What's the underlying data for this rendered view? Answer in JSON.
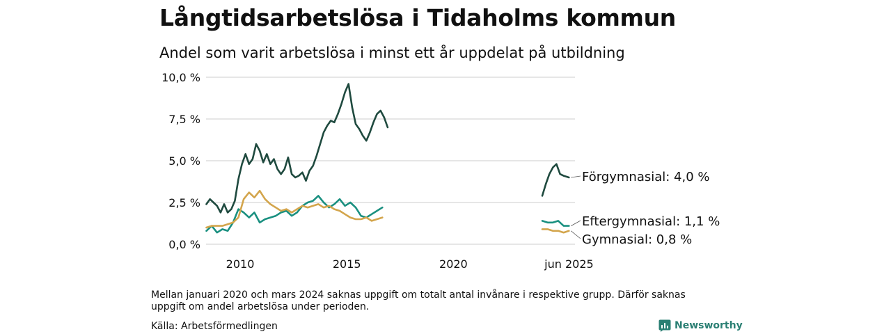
{
  "title": "Långtidsarbetslösa i Tidaholms kommun",
  "subtitle": "Andel som varit arbetslösa i minst ett år uppdelat på utbildning",
  "note": "Mellan januari 2020 och mars 2024 saknas uppgift om totalt antal invånare i respektive grupp. Därför saknas uppgift om andel arbetslösa under perioden.",
  "source": "Källa: Arbetsförmedlingen",
  "logo": {
    "text": "Newsworthy",
    "icon": "newsworthy-logo-icon",
    "color": "#2a7f73"
  },
  "chart_data": {
    "type": "line",
    "x_ticks": [
      "2010",
      "2015",
      "2020",
      "jun 2025"
    ],
    "y_ticks": [
      "0,0 %",
      "2,5 %",
      "5,0 %",
      "7,5 %",
      "10,0 %"
    ],
    "ylim": [
      0,
      10
    ],
    "grid": true,
    "series": [
      {
        "name": "Förgymnasial",
        "end_label": "Förgymnasial: 4,0 %",
        "color": "#1f4a3f",
        "segments": [
          [
            [
              "2008-06",
              2.4
            ],
            [
              "2008-08",
              2.7
            ],
            [
              "2008-10",
              2.5
            ],
            [
              "2008-12",
              2.3
            ],
            [
              "2009-02",
              1.9
            ],
            [
              "2009-04",
              2.4
            ],
            [
              "2009-06",
              1.9
            ],
            [
              "2009-08",
              2.1
            ],
            [
              "2009-10",
              2.6
            ],
            [
              "2009-12",
              3.9
            ],
            [
              "2010-02",
              4.8
            ],
            [
              "2010-04",
              5.4
            ],
            [
              "2010-06",
              4.8
            ],
            [
              "2010-08",
              5.1
            ],
            [
              "2010-10",
              6.0
            ],
            [
              "2010-12",
              5.6
            ],
            [
              "2011-02",
              4.9
            ],
            [
              "2011-04",
              5.4
            ],
            [
              "2011-06",
              4.8
            ],
            [
              "2011-08",
              5.1
            ],
            [
              "2011-10",
              4.5
            ],
            [
              "2011-12",
              4.2
            ],
            [
              "2012-02",
              4.5
            ],
            [
              "2012-04",
              5.2
            ],
            [
              "2012-06",
              4.2
            ],
            [
              "2012-08",
              4.0
            ],
            [
              "2012-10",
              4.1
            ],
            [
              "2012-12",
              4.3
            ],
            [
              "2013-02",
              3.8
            ],
            [
              "2013-04",
              4.4
            ],
            [
              "2013-06",
              4.7
            ],
            [
              "2013-08",
              5.3
            ],
            [
              "2013-10",
              6.0
            ],
            [
              "2013-12",
              6.7
            ],
            [
              "2014-02",
              7.1
            ],
            [
              "2014-04",
              7.4
            ],
            [
              "2014-06",
              7.3
            ],
            [
              "2014-08",
              7.8
            ],
            [
              "2014-10",
              8.4
            ],
            [
              "2014-12",
              9.1
            ],
            [
              "2015-02",
              9.6
            ],
            [
              "2015-04",
              8.2
            ],
            [
              "2015-06",
              7.2
            ],
            [
              "2015-08",
              6.9
            ],
            [
              "2015-10",
              6.5
            ],
            [
              "2015-12",
              6.2
            ],
            [
              "2016-02",
              6.7
            ],
            [
              "2016-04",
              7.3
            ],
            [
              "2016-06",
              7.8
            ],
            [
              "2016-08",
              8.0
            ],
            [
              "2016-10",
              7.6
            ],
            [
              "2016-12",
              7.0
            ]
          ],
          [
            [
              "2024-03",
              2.9
            ],
            [
              "2024-05",
              3.6
            ],
            [
              "2024-07",
              4.2
            ],
            [
              "2024-09",
              4.6
            ],
            [
              "2024-11",
              4.8
            ],
            [
              "2025-01",
              4.2
            ],
            [
              "2025-03",
              4.1
            ],
            [
              "2025-06",
              4.0
            ]
          ]
        ]
      },
      {
        "name": "Eftergymnasial",
        "end_label": "Eftergymnasial: 1,1 %",
        "color": "#1a9080",
        "segments": [
          [
            [
              "2008-06",
              0.8
            ],
            [
              "2008-09",
              1.1
            ],
            [
              "2008-12",
              0.7
            ],
            [
              "2009-03",
              0.9
            ],
            [
              "2009-06",
              0.8
            ],
            [
              "2009-09",
              1.3
            ],
            [
              "2009-12",
              2.1
            ],
            [
              "2010-03",
              1.9
            ],
            [
              "2010-06",
              1.6
            ],
            [
              "2010-09",
              1.9
            ],
            [
              "2010-12",
              1.3
            ],
            [
              "2011-03",
              1.5
            ],
            [
              "2011-06",
              1.6
            ],
            [
              "2011-09",
              1.7
            ],
            [
              "2011-12",
              1.9
            ],
            [
              "2012-03",
              2.0
            ],
            [
              "2012-06",
              1.7
            ],
            [
              "2012-09",
              1.9
            ],
            [
              "2012-12",
              2.3
            ],
            [
              "2013-03",
              2.5
            ],
            [
              "2013-06",
              2.6
            ],
            [
              "2013-09",
              2.9
            ],
            [
              "2013-12",
              2.5
            ],
            [
              "2014-03",
              2.2
            ],
            [
              "2014-06",
              2.4
            ],
            [
              "2014-09",
              2.7
            ],
            [
              "2014-12",
              2.3
            ],
            [
              "2015-03",
              2.5
            ],
            [
              "2015-06",
              2.2
            ],
            [
              "2015-09",
              1.7
            ],
            [
              "2015-12",
              1.6
            ],
            [
              "2016-03",
              1.8
            ],
            [
              "2016-06",
              2.0
            ],
            [
              "2016-09",
              2.2
            ]
          ],
          [
            [
              "2024-03",
              1.4
            ],
            [
              "2024-06",
              1.3
            ],
            [
              "2024-09",
              1.3
            ],
            [
              "2024-12",
              1.4
            ],
            [
              "2025-03",
              1.1
            ],
            [
              "2025-06",
              1.1
            ]
          ]
        ]
      },
      {
        "name": "Gymnasial",
        "end_label": "Gymnasial: 0,8 %",
        "color": "#d3a54c",
        "segments": [
          [
            [
              "2008-06",
              1.0
            ],
            [
              "2008-09",
              1.1
            ],
            [
              "2008-12",
              1.1
            ],
            [
              "2009-03",
              1.1
            ],
            [
              "2009-06",
              1.2
            ],
            [
              "2009-09",
              1.3
            ],
            [
              "2009-12",
              1.6
            ],
            [
              "2010-03",
              2.7
            ],
            [
              "2010-06",
              3.1
            ],
            [
              "2010-09",
              2.8
            ],
            [
              "2010-12",
              3.2
            ],
            [
              "2011-03",
              2.7
            ],
            [
              "2011-06",
              2.4
            ],
            [
              "2011-09",
              2.2
            ],
            [
              "2011-12",
              2.0
            ],
            [
              "2012-03",
              2.1
            ],
            [
              "2012-06",
              1.9
            ],
            [
              "2012-09",
              2.1
            ],
            [
              "2012-12",
              2.3
            ],
            [
              "2013-03",
              2.2
            ],
            [
              "2013-06",
              2.3
            ],
            [
              "2013-09",
              2.4
            ],
            [
              "2013-12",
              2.2
            ],
            [
              "2014-03",
              2.3
            ],
            [
              "2014-06",
              2.1
            ],
            [
              "2014-09",
              2.0
            ],
            [
              "2014-12",
              1.8
            ],
            [
              "2015-03",
              1.6
            ],
            [
              "2015-06",
              1.5
            ],
            [
              "2015-09",
              1.5
            ],
            [
              "2015-12",
              1.6
            ],
            [
              "2016-03",
              1.4
            ],
            [
              "2016-06",
              1.5
            ],
            [
              "2016-09",
              1.6
            ]
          ],
          [
            [
              "2024-03",
              0.9
            ],
            [
              "2024-06",
              0.9
            ],
            [
              "2024-09",
              0.8
            ],
            [
              "2024-12",
              0.8
            ],
            [
              "2025-03",
              0.7
            ],
            [
              "2025-06",
              0.8
            ]
          ]
        ]
      }
    ]
  }
}
